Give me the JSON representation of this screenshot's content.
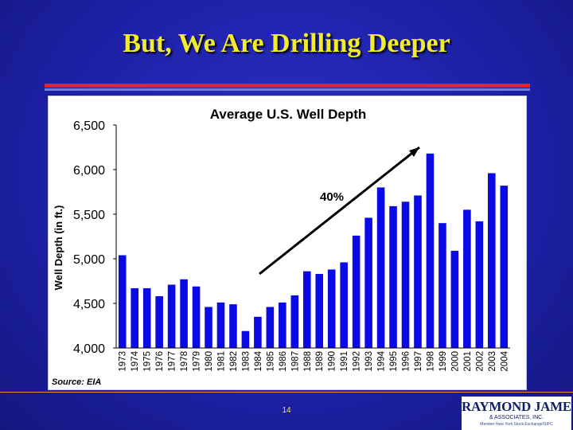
{
  "slide": {
    "title": "But, We Are Drilling Deeper",
    "page_number": "14"
  },
  "logo": {
    "name": "RAYMOND JAMES",
    "subtitle": "& ASSOCIATES, INC.",
    "tagline": "Member New York Stock Exchange/SIPC"
  },
  "colors": {
    "bar": "#0a0ae6",
    "slide_background": "#1d21a8",
    "title": "#f2ec2a"
  },
  "chart_data": {
    "type": "bar",
    "title": "Average U.S. Well Depth",
    "ylabel": "Well Depth (in ft.)",
    "xlabel": "",
    "ylim": [
      4000,
      6500
    ],
    "yticks": [
      4000,
      4500,
      5000,
      5500,
      6000,
      6500
    ],
    "ytick_labels": [
      "4,000",
      "4,500",
      "5,000",
      "5,500",
      "6,000",
      "6,500"
    ],
    "grid": false,
    "legend": "none",
    "source": "Source: EIA",
    "annotation": "40%",
    "categories": [
      "1973",
      "1974",
      "1975",
      "1976",
      "1977",
      "1978",
      "1979",
      "1980",
      "1981",
      "1982",
      "1983",
      "1984",
      "1985",
      "1986",
      "1987",
      "1988",
      "1989",
      "1990",
      "1991",
      "1992",
      "1993",
      "1994",
      "1995",
      "1996",
      "1997",
      "1998",
      "1999",
      "2000",
      "2001",
      "2002",
      "2003",
      "2004"
    ],
    "values": [
      5040,
      4670,
      4670,
      4580,
      4710,
      4770,
      4690,
      4460,
      4510,
      4490,
      4190,
      4350,
      4460,
      4510,
      4590,
      4860,
      4830,
      4880,
      4960,
      5260,
      5460,
      5800,
      5590,
      5640,
      5710,
      6180,
      5400,
      5090,
      5550,
      5420,
      5960,
      5820
    ]
  }
}
